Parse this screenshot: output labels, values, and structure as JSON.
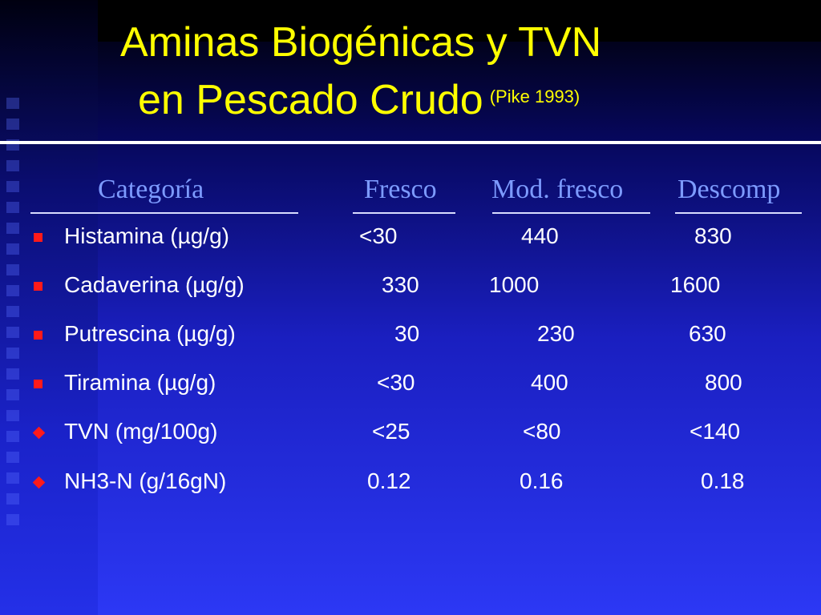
{
  "title": {
    "line1": "Aminas Biogénicas y TVN",
    "line2": "en Pescado Crudo",
    "citation": "(Pike 1993)"
  },
  "headers": {
    "category": "Categoría",
    "fresh": "Fresco",
    "moderately_fresh": "Mod. fresco",
    "decomposed": "Descomp"
  },
  "rows": [
    {
      "label": "Histamina (µg/g)",
      "fresh": "<30",
      "moderately_fresh": "440",
      "decomposed": "830",
      "bullet": "square-icon"
    },
    {
      "label": "Cadaverina (µg/g)",
      "fresh": "330",
      "moderately_fresh": "1000",
      "decomposed": "1600",
      "bullet": "square-icon"
    },
    {
      "label": "Putrescina (µg/g)",
      "fresh": "30",
      "moderately_fresh": "230",
      "decomposed": "630",
      "bullet": "square-icon"
    },
    {
      "label": "Tiramina (µg/g)",
      "fresh": "<30",
      "moderately_fresh": "400",
      "decomposed": "800",
      "bullet": "square-icon"
    },
    {
      "label": "TVN (mg/100g)",
      "fresh": "<25",
      "moderately_fresh": "<80",
      "decomposed": "<140",
      "bullet": "diamond-icon"
    },
    {
      "label": "NH3-N (g/16gN)",
      "fresh": "0.12",
      "moderately_fresh": "0.16",
      "decomposed": "0.18",
      "bullet": "diamond-icon"
    }
  ],
  "colors": {
    "title": "#ffff00",
    "header": "#7d9bff",
    "text": "#ffffff",
    "bullet": "#ff1a1a"
  }
}
